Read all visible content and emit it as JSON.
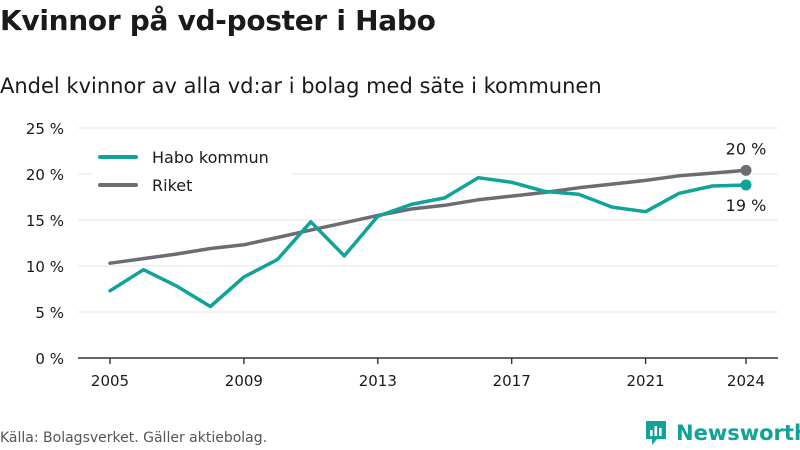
{
  "title": "Kvinnor på vd-poster i Habo",
  "subtitle": "Andel kvinnor av alla vd:ar i bolag med säte i kommunen",
  "source": "Källa: Bolagsverket. Gäller aktiebolag.",
  "brand": "Newsworthy",
  "colors": {
    "habo": "#0fa39a",
    "riket": "#6e6c73",
    "grid": "#e6e6e6",
    "axis": "#333333",
    "text": "#1a1a1a",
    "brand": "#11a398"
  },
  "chart_data": {
    "type": "line",
    "x": [
      2005,
      2006,
      2007,
      2008,
      2009,
      2010,
      2011,
      2012,
      2013,
      2014,
      2015,
      2016,
      2017,
      2018,
      2019,
      2020,
      2021,
      2022,
      2023,
      2024
    ],
    "series": [
      {
        "name": "Habo kommun",
        "values": [
          7.3,
          9.6,
          7.8,
          5.6,
          8.8,
          10.7,
          14.8,
          11.1,
          15.4,
          16.7,
          17.4,
          19.6,
          19.1,
          18.1,
          17.8,
          16.4,
          15.9,
          17.9,
          18.7,
          18.8
        ]
      },
      {
        "name": "Riket",
        "values": [
          10.3,
          10.8,
          11.3,
          11.9,
          12.3,
          13.1,
          13.9,
          14.7,
          15.5,
          16.2,
          16.6,
          17.2,
          17.6,
          18.0,
          18.5,
          18.9,
          19.3,
          19.8,
          20.1,
          20.4
        ]
      }
    ],
    "xticks": [
      "2005",
      "2009",
      "2013",
      "2017",
      "2021",
      "2024"
    ],
    "yticks": [
      "0 %",
      "5 %",
      "10 %",
      "15 %",
      "20 %",
      "25 %"
    ],
    "ylim": [
      0,
      25
    ],
    "xlim": [
      2005,
      2024
    ],
    "end_labels": {
      "habo": "19 %",
      "riket": "20 %"
    },
    "legend": [
      "Habo kommun",
      "Riket"
    ],
    "legend_position": "top-left",
    "grid": true
  }
}
